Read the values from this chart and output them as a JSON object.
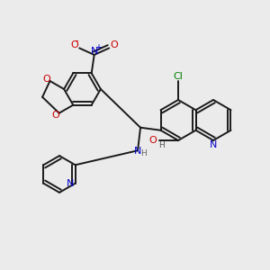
{
  "background_color": "#ebebeb",
  "bond_color": "#1a1a1a",
  "figsize": [
    3.0,
    3.0
  ],
  "dpi": 100,
  "xlim": [
    0,
    1
  ],
  "ylim": [
    0,
    1
  ]
}
